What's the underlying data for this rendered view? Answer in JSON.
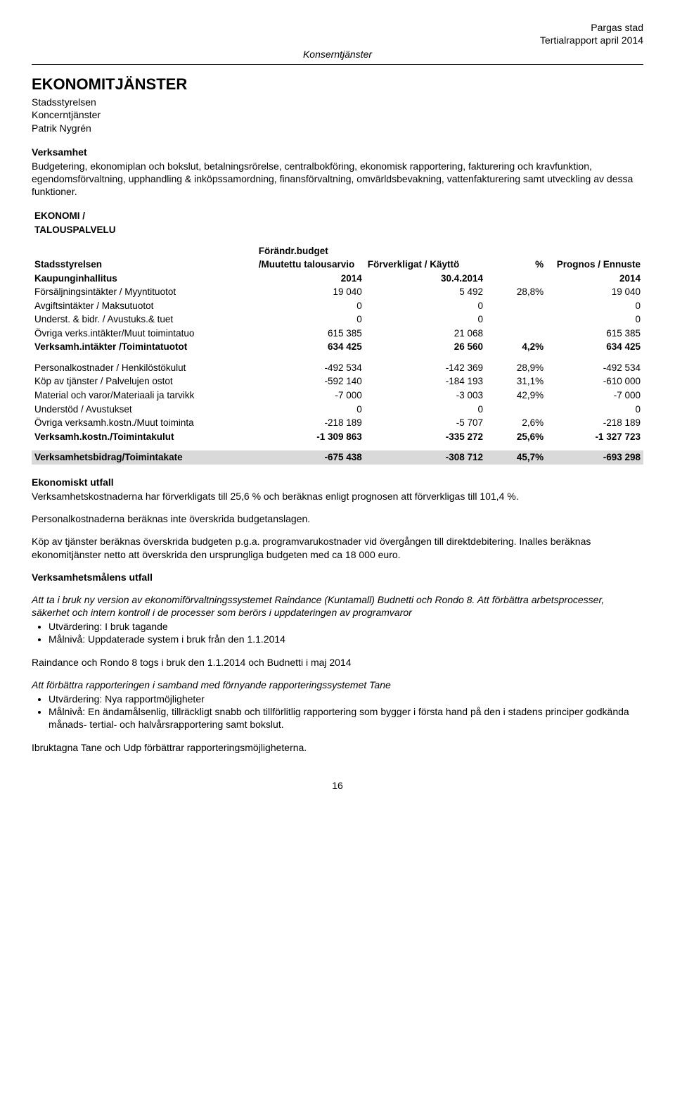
{
  "header": {
    "right1": "Pargas stad",
    "right2": "Tertialrapport april 2014",
    "center": "Konserntjänster"
  },
  "title": "EKONOMITJÄNSTER",
  "subtitle_lines": [
    "Stadsstyrelsen",
    "Koncerntjänster",
    "Patrik Nygrén"
  ],
  "verksamhet": {
    "heading": "Verksamhet",
    "body": "Budgetering, ekonomiplan och bokslut, betalningsrörelse, centralbokföring, ekonomisk rapportering, fakturering och kravfunktion, egendomsförvaltning, upphandling & inköpssamordning, finansförvaltning, omvärldsbevakning, vattenfakturering samt utveckling av dessa funktioner."
  },
  "table": {
    "top_label1": "EKONOMI /",
    "top_label2": "TALOUSPALVELU",
    "header": {
      "col1a": "Stadsstyrelsen",
      "col1b": "Kaupunginhallitus",
      "col2a": "Förändr.budget",
      "col2b": "/Muutettu talousarvio",
      "col2c": "2014",
      "col3a": "Förverkligat / Käyttö",
      "col3b": "30.4.2014",
      "col4": "%",
      "col5a": "Prognos / Ennuste",
      "col5b": "2014"
    },
    "rows": [
      {
        "label": "Försäljningsintäkter / Myyntituotot",
        "budget": "19 040",
        "forv": "5 492",
        "pct": "28,8%",
        "prog": "19 040",
        "bold": false
      },
      {
        "label": "Avgiftsintäkter / Maksutuotot",
        "budget": "0",
        "forv": "0",
        "pct": "",
        "prog": "0",
        "bold": false
      },
      {
        "label": "Underst. & bidr. / Avustuks.& tuet",
        "budget": "0",
        "forv": "0",
        "pct": "",
        "prog": "0",
        "bold": false
      },
      {
        "label": "Övriga verks.intäkter/Muut toimintatuo",
        "budget": "615 385",
        "forv": "21 068",
        "pct": "",
        "prog": "615 385",
        "bold": false
      },
      {
        "label": "Verksamh.intäkter /Toimintatuotot",
        "budget": "634 425",
        "forv": "26 560",
        "pct": "4,2%",
        "prog": "634 425",
        "bold": true
      }
    ],
    "rows2": [
      {
        "label": "Personalkostnader / Henkilöstökulut",
        "budget": "-492 534",
        "forv": "-142 369",
        "pct": "28,9%",
        "prog": "-492 534",
        "bold": false
      },
      {
        "label": "Köp av tjänster / Palvelujen ostot",
        "budget": "-592 140",
        "forv": "-184 193",
        "pct": "31,1%",
        "prog": "-610 000",
        "bold": false
      },
      {
        "label": "Material och varor/Materiaali ja tarvikk",
        "budget": "-7 000",
        "forv": "-3 003",
        "pct": "42,9%",
        "prog": "-7 000",
        "bold": false
      },
      {
        "label": "Understöd / Avustukset",
        "budget": "0",
        "forv": "0",
        "pct": "",
        "prog": "0",
        "bold": false
      },
      {
        "label": "Övriga verksamh.kostn./Muut toiminta",
        "budget": "-218 189",
        "forv": "-5 707",
        "pct": "2,6%",
        "prog": "-218 189",
        "bold": false
      },
      {
        "label": "Verksamh.kostn./Toimintakulut",
        "budget": "-1 309 863",
        "forv": "-335 272",
        "pct": "25,6%",
        "prog": "-1 327 723",
        "bold": true
      }
    ],
    "footer": {
      "label": "Verksamhetsbidrag/Toimintakate",
      "budget": "-675 438",
      "forv": "-308 712",
      "pct": "45,7%",
      "prog": "-693 298"
    }
  },
  "ekonomiskt": {
    "heading": "Ekonomiskt utfall",
    "p1": "Verksamhetskostnaderna har förverkligats till 25,6 % och beräknas enligt prognosen att förverkligas till 101,4 %.",
    "p2": "Personalkostnaderna beräknas inte överskrida budgetanslagen.",
    "p3": "Köp av tjänster beräknas överskrida budgeten p.g.a. programvarukostnader vid övergången till direktdebitering. Inalles beräknas ekonomitjänster netto att överskrida den ursprungliga budgeten med ca 18 000 euro."
  },
  "malen": {
    "heading": "Verksamhetsmålens utfall",
    "goal1": {
      "intro": "Att ta i bruk ny version av ekonomiförvaltningssystemet Raindance (Kuntamall) Budnetti och Rondo 8.  Att förbättra arbetsprocesser, säkerhet och intern kontroll i de processer som berörs i uppdateringen av programvaror",
      "b1": "Utvärdering: I bruk tagande",
      "b2": "Målnivå: Uppdaterade system i bruk från den 1.1.2014",
      "result": "Raindance och Rondo 8 togs i bruk den 1.1.2014 och Budnetti i maj 2014"
    },
    "goal2": {
      "intro": "Att förbättra rapporteringen i samband med förnyande rapporteringssystemet Tane",
      "b1": "Utvärdering: Nya rapportmöjligheter",
      "b2": "Målnivå: En ändamålsenlig, tillräckligt snabb och tillförlitlig rapportering som bygger i första hand på den i stadens principer godkända månads- tertial- och halvårsrapportering samt bokslut.",
      "result": "Ibruktagna Tane och Udp förbättrar rapporteringsmöjligheterna."
    }
  },
  "page_number": "16"
}
